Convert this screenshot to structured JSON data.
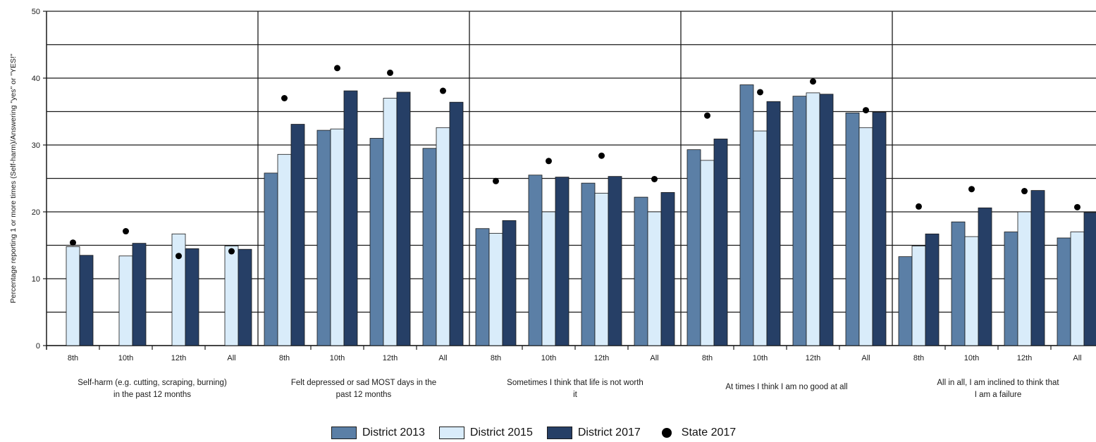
{
  "chart_data": {
    "type": "bar",
    "ylabel": "Percentage reporting 1 or more times (Self-harm)/Answering \"yes\" or \"YES!\"",
    "ylim": [
      0,
      50
    ],
    "yticks": [
      0,
      10,
      20,
      30,
      40,
      50
    ],
    "grid": true,
    "legend_position": "bottom",
    "grades": [
      "8th",
      "10th",
      "12th",
      "All"
    ],
    "groups": [
      "Self-harm (e.g. cutting, scraping, burning)|in the past 12 months",
      "Felt depressed or sad MOST days in the|past 12 months",
      "Sometimes I think that life is not worth|it",
      "At times I think I am no good at all",
      "All in all, I am inclined to think that|I am a failure"
    ],
    "series": [
      {
        "name": "District 2013",
        "color": "#5b7fa6",
        "kind": "bar",
        "values": [
          [
            null,
            null,
            null,
            null
          ],
          [
            25.8,
            32.2,
            31.0,
            29.5
          ],
          [
            17.5,
            25.5,
            24.3,
            22.2
          ],
          [
            29.3,
            39.0,
            37.3,
            34.8
          ],
          [
            13.3,
            18.5,
            17.0,
            16.1
          ]
        ]
      },
      {
        "name": "District 2015",
        "color": "#d9ecfa",
        "kind": "bar",
        "values": [
          [
            14.8,
            13.4,
            16.7,
            14.9
          ],
          [
            28.6,
            32.4,
            37.0,
            32.6
          ],
          [
            16.8,
            20.0,
            22.8,
            20.0
          ],
          [
            27.7,
            32.1,
            37.8,
            32.6
          ],
          [
            14.9,
            16.3,
            20.0,
            17.0
          ]
        ]
      },
      {
        "name": "District 2017",
        "color": "#263f66",
        "kind": "bar",
        "values": [
          [
            13.5,
            15.3,
            14.5,
            14.4
          ],
          [
            33.1,
            38.1,
            37.9,
            36.4
          ],
          [
            18.7,
            25.2,
            25.3,
            22.9
          ],
          [
            30.9,
            36.5,
            37.6,
            34.9
          ],
          [
            16.7,
            20.6,
            23.2,
            19.9
          ]
        ]
      },
      {
        "name": "State 2017",
        "color": "#000000",
        "kind": "dot",
        "values": [
          [
            15.4,
            17.1,
            13.4,
            14.1
          ],
          [
            37.0,
            41.5,
            40.8,
            38.1
          ],
          [
            24.6,
            27.6,
            28.4,
            24.9
          ],
          [
            34.4,
            37.9,
            39.5,
            35.2
          ],
          [
            20.8,
            23.4,
            23.1,
            20.7
          ]
        ]
      }
    ]
  }
}
